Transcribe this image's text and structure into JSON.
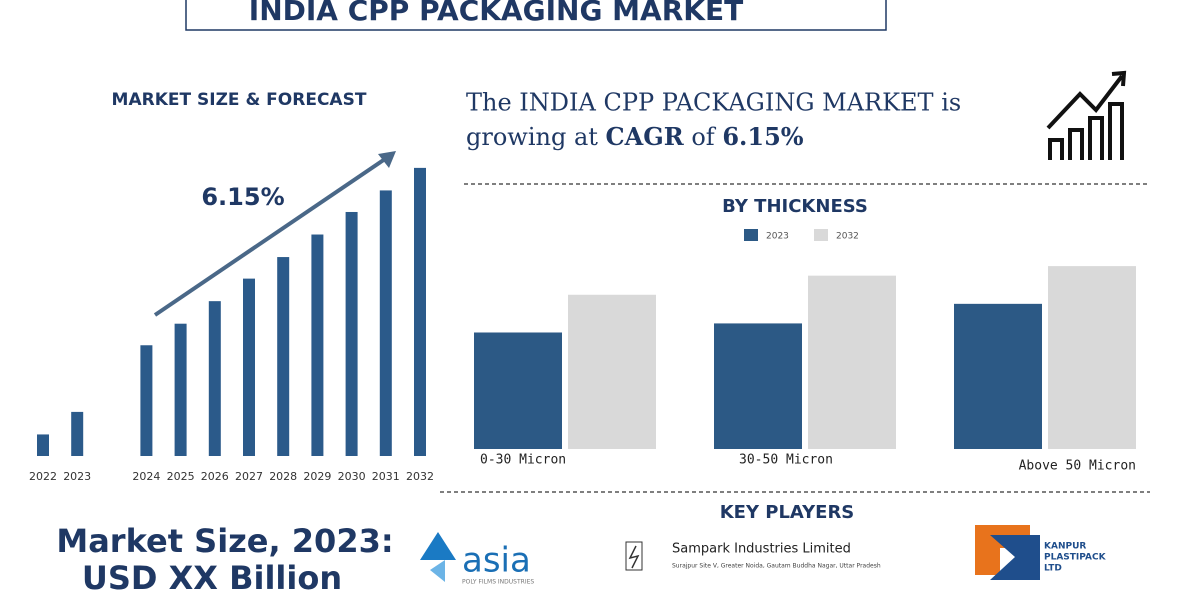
{
  "header": {
    "title": "INDIA CPP PACKAGING MARKET"
  },
  "chart_data": [
    {
      "type": "bar",
      "title": "MARKET SIZE & FORECAST",
      "annotation": "6.15%",
      "categories": [
        "2022",
        "2023",
        "2024",
        "2025",
        "2026",
        "2027",
        "2028",
        "2029",
        "2030",
        "2031",
        "2032"
      ],
      "values": [
        22,
        45,
        113,
        135,
        158,
        181,
        203,
        226,
        249,
        271,
        294
      ],
      "color": "#2b5a8a",
      "ylim": [
        0,
        300
      ]
    },
    {
      "type": "grouped-bar",
      "title": "BY THICKNESS",
      "categories": [
        "0-30 Micron",
        "30-50 Micron",
        "Above 50 Micron"
      ],
      "series": [
        {
          "name": "2023",
          "color": "#2c5985",
          "values": [
            2.44,
            2.63,
            3.04
          ]
        },
        {
          "name": "2032",
          "color": "#d9d9d9",
          "values": [
            3.23,
            3.63,
            3.83
          ]
        }
      ],
      "ylim": [
        0,
        4
      ],
      "legend": "top"
    }
  ],
  "cagr": {
    "intro": "The INDIA CPP PACKAGING MARKET is",
    "line2": "growing at",
    "bold": "CAGR",
    "of": "of",
    "rate": "6.15%"
  },
  "market_size": {
    "line1": "Market Size, 2023:",
    "line2": "USD XX Billion"
  },
  "key_players": {
    "title": "KEY PLAYERS",
    "players": [
      {
        "name": "asia",
        "tagline": "POLY FILMS INDUSTRIES"
      },
      {
        "name": "Sampark Industries Limited",
        "address": "Surajpur Site V, Greater Noida, Gautam Buddha Nagar, Uttar Pradesh"
      },
      {
        "lines": [
          "KANPUR",
          "PLASTIPACK",
          "LTD"
        ]
      }
    ]
  }
}
